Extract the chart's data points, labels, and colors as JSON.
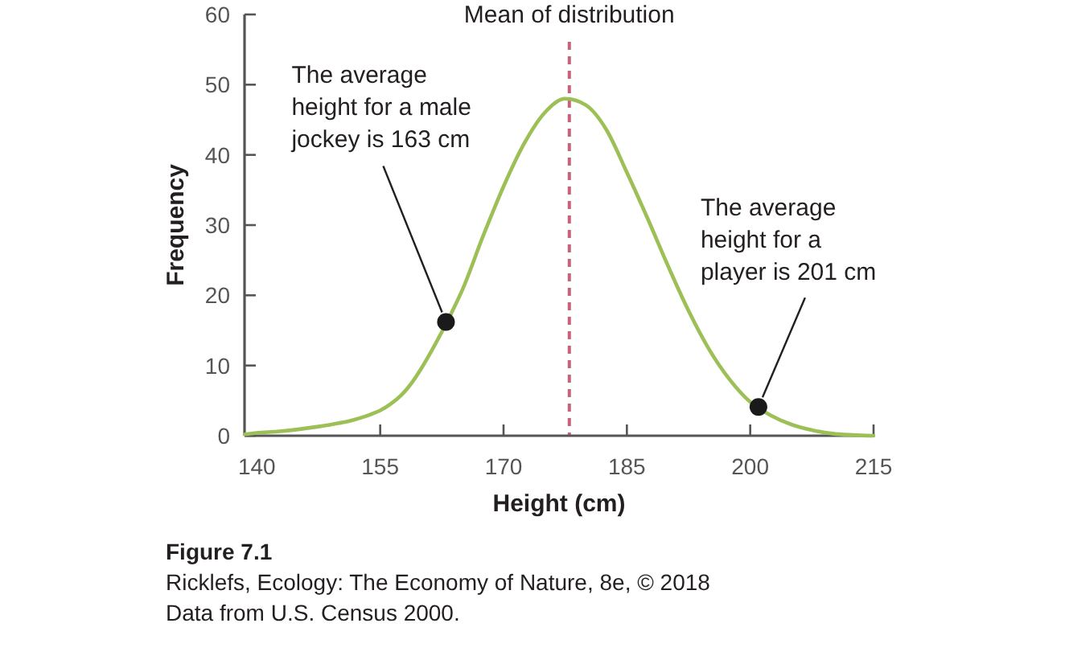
{
  "chart_data": {
    "type": "line",
    "xlabel": "Height (cm)",
    "ylabel": "Frequency",
    "xlim": [
      138.5,
      215
    ],
    "ylim": [
      0,
      60
    ],
    "xticks": [
      140,
      155,
      170,
      185,
      200,
      215
    ],
    "yticks": [
      0,
      10,
      20,
      30,
      40,
      50,
      60
    ],
    "series": [
      {
        "color": "#9cc056",
        "x": [
          138.5,
          140,
          142.5,
          145,
          147.5,
          150,
          151.25,
          152.5,
          153.75,
          155,
          156.25,
          157.5,
          158.75,
          160,
          161.25,
          162.5,
          163.75,
          165,
          167.5,
          170,
          172.5,
          175,
          177.5,
          180,
          182.5,
          185,
          187.5,
          190,
          192.5,
          195,
          197.5,
          200,
          202.5,
          205,
          207.5,
          210,
          212.5,
          215
        ],
        "values": [
          0.2,
          0.4,
          0.6,
          0.9,
          1.3,
          1.8,
          2.1,
          2.5,
          3.0,
          3.6,
          4.5,
          5.7,
          7.4,
          9.6,
          12.1,
          14.8,
          17.7,
          20.8,
          28.4,
          35.5,
          41.6,
          46.0,
          48.0,
          47.1,
          43.6,
          37.5,
          31.0,
          24.2,
          17.8,
          12.3,
          8.0,
          4.8,
          2.9,
          1.6,
          0.8,
          0.3,
          0.1,
          0
        ]
      },
      {
        "type": "scatter",
        "color": "#1a1a1a",
        "marker": "circle",
        "x": [
          163,
          201
        ],
        "values": [
          16.2,
          4.1
        ]
      }
    ],
    "ref_lines": [
      {
        "axis": "x",
        "value": 178,
        "label": "Mean of distribution",
        "color": "#c4647c",
        "line_style": "dashed"
      }
    ],
    "annotations": [
      {
        "text": "The average height for a male jockey is 163 cm",
        "x": 163,
        "y": 16.2
      },
      {
        "text": "The average height for a player is 201 cm",
        "x": 201,
        "y": 4.1
      },
      "Figure 7.1",
      "Ricklefs, Ecology: The Economy of Nature, 8e, © 2018",
      "Data from U.S. Census 2000."
    ]
  }
}
